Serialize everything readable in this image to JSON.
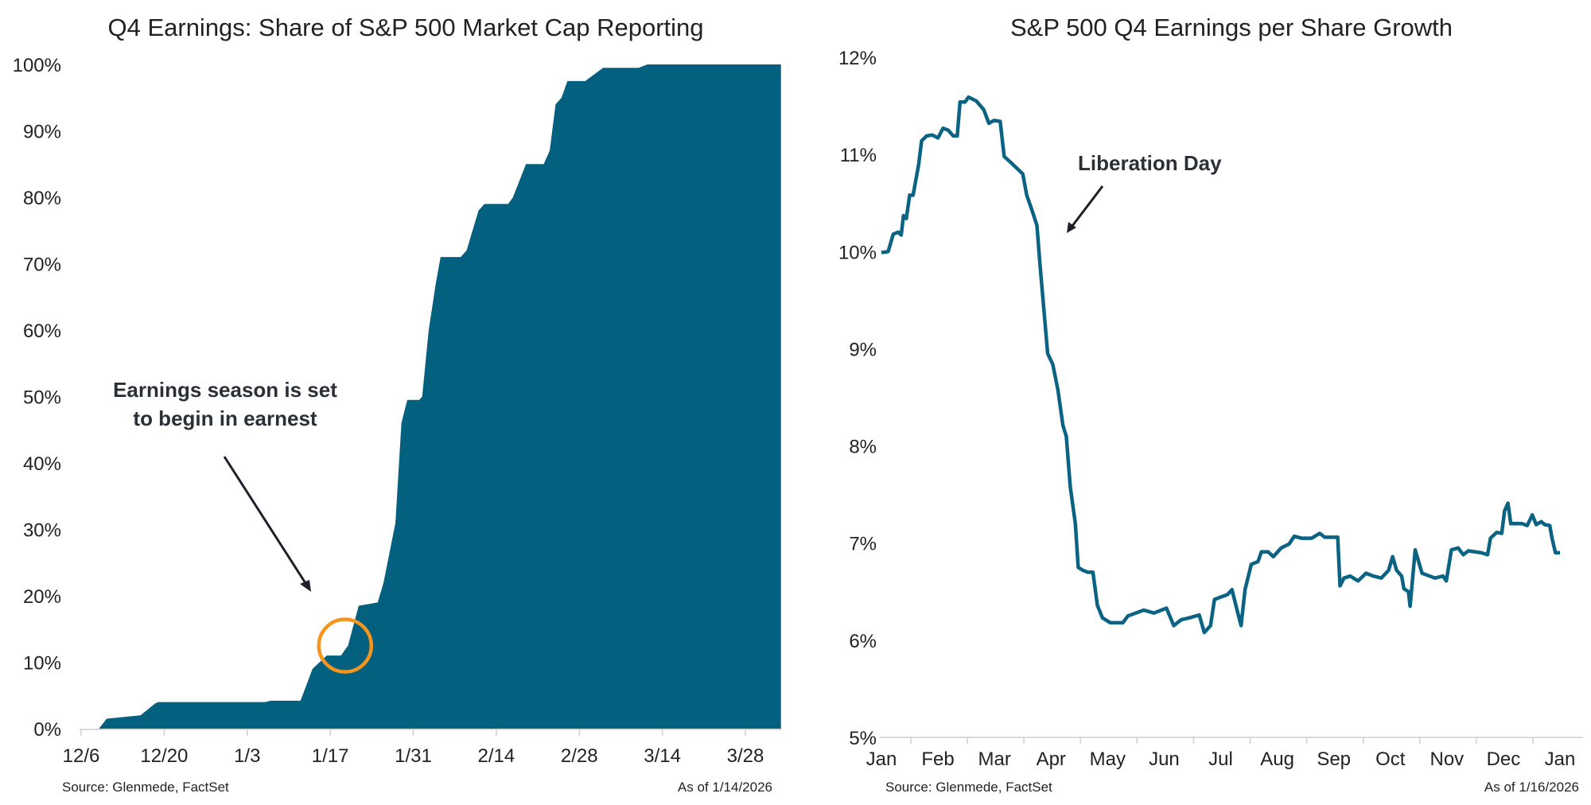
{
  "chart_data": [
    {
      "type": "area",
      "title": "Q4 Earnings: Share of S&P 500 Market Cap Reporting",
      "xlabel": "",
      "ylabel": "",
      "x_unit": "days since 12/6",
      "xlim": [
        0,
        118
      ],
      "ylim": [
        0,
        100
      ],
      "yticks": [
        "0%",
        "10%",
        "20%",
        "30%",
        "40%",
        "50%",
        "60%",
        "70%",
        "80%",
        "90%",
        "100%"
      ],
      "xticks": [
        {
          "label": "12/6",
          "day": 0
        },
        {
          "label": "12/20",
          "day": 14
        },
        {
          "label": "1/3",
          "day": 28
        },
        {
          "label": "1/17",
          "day": 42
        },
        {
          "label": "1/31",
          "day": 56
        },
        {
          "label": "2/14",
          "day": 70
        },
        {
          "label": "2/28",
          "day": 84
        },
        {
          "label": "3/14",
          "day": 98
        },
        {
          "label": "3/28",
          "day": 112
        }
      ],
      "color": "#04607f",
      "x": [
        3,
        4.3,
        10,
        12.5,
        13,
        31,
        32,
        37,
        39,
        41.4,
        43.8,
        45,
        46.8,
        50,
        51,
        53,
        54,
        55,
        57,
        57.5,
        58.6,
        59.8,
        60.6,
        64,
        65,
        67,
        68,
        72,
        72.8,
        75,
        78,
        79,
        80,
        81,
        82,
        85,
        88,
        94,
        95.5,
        118
      ],
      "values": [
        0,
        1.5,
        2,
        3.8,
        4,
        4,
        4.2,
        4.2,
        9,
        11,
        11,
        12.5,
        18.5,
        19,
        22,
        31,
        46,
        49.5,
        49.5,
        50,
        60,
        67,
        71,
        71,
        72,
        78,
        79,
        79,
        80,
        85,
        85,
        87,
        94,
        95,
        97.5,
        97.5,
        99.5,
        99.5,
        100,
        100
      ],
      "annotation": {
        "lines": [
          "Earnings season is set",
          "to begin in earnest"
        ],
        "highlight_day": 44.5,
        "highlight_value": 12.5,
        "highlight_color": "#f7941d"
      },
      "source": "Source: Glenmede, FactSet",
      "as_of": "As of 1/14/2026"
    },
    {
      "type": "line",
      "title": "S&P 500 Q4 Earnings per Share Growth",
      "xlabel": "",
      "ylabel": "",
      "x_unit": "months since Jan",
      "xlim": [
        0,
        12
      ],
      "ylim": [
        5,
        12
      ],
      "yticks": [
        "5%",
        "6%",
        "7%",
        "8%",
        "9%",
        "10%",
        "11%",
        "12%"
      ],
      "xticks": [
        "Jan",
        "Feb",
        "Mar",
        "Apr",
        "May",
        "Jun",
        "Jul",
        "Aug",
        "Sep",
        "Oct",
        "Nov",
        "Dec",
        "Jan"
      ],
      "color": "#0b6384",
      "x": [
        0,
        0.12,
        0.21,
        0.3,
        0.35,
        0.39,
        0.44,
        0.5,
        0.56,
        0.66,
        0.71,
        0.8,
        0.9,
        1.0,
        1.09,
        1.18,
        1.27,
        1.34,
        1.39,
        1.48,
        1.54,
        1.68,
        1.81,
        1.9,
        1.99,
        2.1,
        2.17,
        2.3,
        2.41,
        2.5,
        2.57,
        2.66,
        2.75,
        2.8,
        2.94,
        3.03,
        3.12,
        3.21,
        3.27,
        3.34,
        3.43,
        3.48,
        3.56,
        3.65,
        3.74,
        3.82,
        3.91,
        4.05,
        4.27,
        4.36,
        4.64,
        4.82,
        5.04,
        5.17,
        5.3,
        5.44,
        5.62,
        5.71,
        5.82,
        5.89,
        5.98,
        6.12,
        6.2,
        6.29,
        6.36,
        6.43,
        6.54,
        6.66,
        6.72,
        6.84,
        6.93,
        7.07,
        7.21,
        7.3,
        7.43,
        7.61,
        7.75,
        7.84,
        8.07,
        8.11,
        8.18,
        8.29,
        8.43,
        8.57,
        8.7,
        8.84,
        8.97,
        9.04,
        9.11,
        9.2,
        9.24,
        9.32,
        9.35,
        9.44,
        9.56,
        9.79,
        9.93,
        9.99,
        10.08,
        10.2,
        10.29,
        10.38,
        10.61,
        10.72,
        10.77,
        10.88,
        10.97,
        11.02,
        11.08,
        11.13,
        11.33,
        11.42,
        11.51,
        11.58,
        11.67,
        11.73,
        11.82,
        11.86,
        11.92,
        12.0
      ],
      "values": [
        9.99,
        10.0,
        10.18,
        10.2,
        10.17,
        10.37,
        10.34,
        10.58,
        10.58,
        10.9,
        11.14,
        11.19,
        11.2,
        11.17,
        11.27,
        11.25,
        11.19,
        11.19,
        11.54,
        11.54,
        11.59,
        11.55,
        11.46,
        11.32,
        11.35,
        11.34,
        10.98,
        10.91,
        10.85,
        10.8,
        10.58,
        10.43,
        10.27,
        9.9,
        8.95,
        8.84,
        8.58,
        8.21,
        8.1,
        7.58,
        7.2,
        6.75,
        6.72,
        6.7,
        6.7,
        6.36,
        6.23,
        6.18,
        6.18,
        6.25,
        6.31,
        6.28,
        6.33,
        6.15,
        6.21,
        6.23,
        6.26,
        6.08,
        6.15,
        6.42,
        6.44,
        6.47,
        6.52,
        6.31,
        6.15,
        6.52,
        6.78,
        6.81,
        6.91,
        6.91,
        6.86,
        6.95,
        6.99,
        7.07,
        7.05,
        7.05,
        7.1,
        7.06,
        7.06,
        6.56,
        6.64,
        6.66,
        6.61,
        6.69,
        6.66,
        6.64,
        6.72,
        6.86,
        6.72,
        6.66,
        6.53,
        6.5,
        6.35,
        6.93,
        6.69,
        6.64,
        6.66,
        6.61,
        6.93,
        6.95,
        6.88,
        6.92,
        6.9,
        6.88,
        7.05,
        7.11,
        7.1,
        7.33,
        7.41,
        7.2,
        7.2,
        7.18,
        7.29,
        7.19,
        7.22,
        7.19,
        7.18,
        7.05,
        6.9,
        6.9
      ],
      "annotation": {
        "label": "Liberation Day"
      },
      "source": "Source: Glenmede, FactSet",
      "as_of": "As of 1/16/2026"
    }
  ]
}
